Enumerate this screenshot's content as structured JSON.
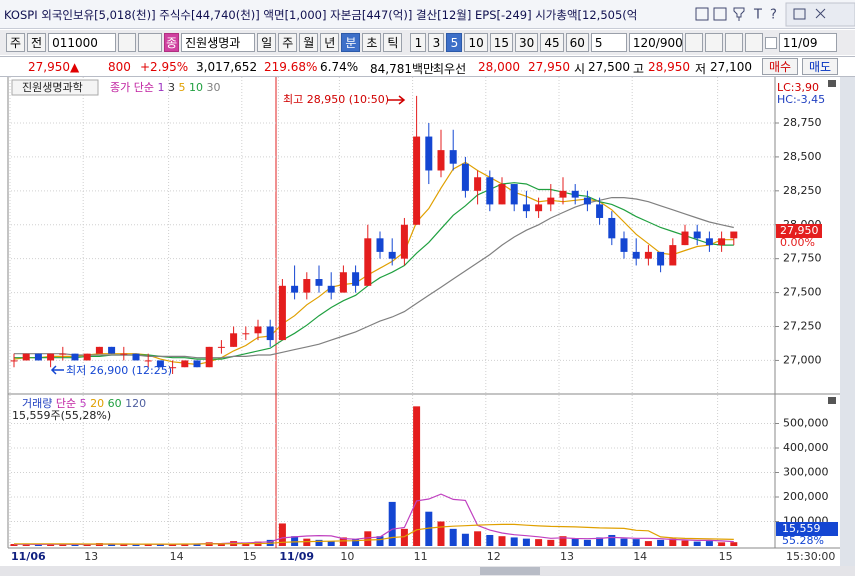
{
  "title_bar": {
    "text": "KOSPI 외국인보유[5,018(천)] 주식수[44,740(천)] 액면[1,000] 자본금[447(억)] 결산[12월] EPS[-249] 시가총액[12,505(억",
    "icons": [
      "T",
      "?"
    ]
  },
  "toolbar": {
    "market": "주",
    "mode": "전",
    "code": "011000",
    "badge": "종",
    "name": "진원생명과",
    "periods": [
      "일",
      "주",
      "월",
      "년",
      "분",
      "초",
      "틱"
    ],
    "active_period": 4,
    "intervals": [
      "1",
      "3",
      "5",
      "10",
      "15",
      "30",
      "45",
      "60"
    ],
    "active_interval": 2,
    "count": "5",
    "range": "120/900",
    "date": "11/09"
  },
  "quote": {
    "items": [
      {
        "text": "27,950▲",
        "color": "#e00000"
      },
      {
        "text": "800",
        "color": "#e00000"
      },
      {
        "text": "+2.95%",
        "color": "#e00000"
      },
      {
        "text": "3,017,652",
        "color": "#000000"
      },
      {
        "text": "219.68%",
        "color": "#e00000"
      },
      {
        "text": "6.74%",
        "color": "#000000"
      },
      {
        "text": "84,781백만",
        "color": "#000000"
      },
      {
        "text": "최우선",
        "color": "#000000"
      },
      {
        "text": "28,000",
        "color": "#e00000"
      },
      {
        "text": "27,950",
        "color": "#e00000"
      },
      {
        "text": "시",
        "color": "#000000"
      },
      {
        "text": "27,500",
        "color": "#000000"
      },
      {
        "text": "고",
        "color": "#000000"
      },
      {
        "text": "28,950",
        "color": "#e00000"
      },
      {
        "text": "저",
        "color": "#000000"
      },
      {
        "text": "27,100",
        "color": "#000000"
      }
    ],
    "buttons": [
      {
        "text": "매수",
        "color": "#d00000"
      },
      {
        "text": "매도",
        "color": "#0030c0"
      }
    ]
  },
  "chart_data": {
    "type": "candlestick",
    "grid": true,
    "categories": [
      "11/06",
      null,
      null,
      null,
      null,
      null,
      "13",
      null,
      null,
      null,
      null,
      null,
      null,
      "14",
      null,
      null,
      null,
      null,
      null,
      "15",
      null,
      null,
      "11/09",
      null,
      null,
      null,
      null,
      "10",
      null,
      null,
      null,
      null,
      null,
      "11",
      null,
      null,
      null,
      null,
      null,
      "12",
      null,
      null,
      null,
      null,
      null,
      "13",
      null,
      null,
      null,
      null,
      null,
      "14",
      null,
      null,
      null,
      null,
      null,
      null,
      "15",
      null
    ],
    "end_label": "15:30:00",
    "price": {
      "name": "진원생명과학",
      "legend_title": "종가 단순",
      "up_color": "#e41e1e",
      "down_color": "#1446d2",
      "candles": [
        [
          27000,
          27050,
          26950,
          27000
        ],
        [
          27000,
          27050,
          27000,
          27050
        ],
        [
          27050,
          27050,
          27000,
          27000
        ],
        [
          27000,
          27050,
          26950,
          27050
        ],
        [
          27050,
          27100,
          27000,
          27050
        ],
        [
          27050,
          27050,
          27000,
          27000
        ],
        [
          27000,
          27050,
          27000,
          27050
        ],
        [
          27050,
          27100,
          27050,
          27100
        ],
        [
          27100,
          27100,
          27050,
          27050
        ],
        [
          27050,
          27100,
          27000,
          27050
        ],
        [
          27050,
          27050,
          27000,
          27000
        ],
        [
          27000,
          27050,
          26950,
          27000
        ],
        [
          27000,
          27000,
          26950,
          26950
        ],
        [
          26950,
          27000,
          26900,
          26950
        ],
        [
          26950,
          27000,
          26950,
          27000
        ],
        [
          27000,
          27000,
          26950,
          26950
        ],
        [
          26950,
          27100,
          26950,
          27100
        ],
        [
          27100,
          27150,
          27050,
          27100
        ],
        [
          27100,
          27250,
          27100,
          27200
        ],
        [
          27200,
          27250,
          27150,
          27200
        ],
        [
          27200,
          27300,
          27150,
          27250
        ],
        [
          27250,
          27300,
          27100,
          27150
        ],
        [
          27150,
          27600,
          27150,
          27550
        ],
        [
          27550,
          27700,
          27450,
          27500
        ],
        [
          27500,
          27650,
          27450,
          27600
        ],
        [
          27600,
          27700,
          27500,
          27550
        ],
        [
          27550,
          27650,
          27450,
          27500
        ],
        [
          27500,
          27700,
          27500,
          27650
        ],
        [
          27650,
          27700,
          27500,
          27550
        ],
        [
          27550,
          28000,
          27550,
          27900
        ],
        [
          27900,
          27950,
          27750,
          27800
        ],
        [
          27800,
          27900,
          27700,
          27750
        ],
        [
          27750,
          28050,
          27700,
          28000
        ],
        [
          28000,
          28950,
          28000,
          28650
        ],
        [
          28650,
          28750,
          28300,
          28400
        ],
        [
          28400,
          28700,
          28350,
          28550
        ],
        [
          28550,
          28700,
          28400,
          28450
        ],
        [
          28450,
          28500,
          28200,
          28250
        ],
        [
          28250,
          28400,
          28150,
          28350
        ],
        [
          28350,
          28400,
          28100,
          28150
        ],
        [
          28150,
          28350,
          28150,
          28300
        ],
        [
          28300,
          28300,
          28100,
          28150
        ],
        [
          28150,
          28250,
          28050,
          28100
        ],
        [
          28100,
          28200,
          28050,
          28150
        ],
        [
          28150,
          28300,
          28100,
          28200
        ],
        [
          28200,
          28350,
          28150,
          28250
        ],
        [
          28250,
          28300,
          28150,
          28200
        ],
        [
          28200,
          28250,
          28100,
          28150
        ],
        [
          28150,
          28200,
          28000,
          28050
        ],
        [
          28050,
          28100,
          27850,
          27900
        ],
        [
          27900,
          27950,
          27750,
          27800
        ],
        [
          27800,
          27900,
          27700,
          27750
        ],
        [
          27750,
          27850,
          27700,
          27800
        ],
        [
          27800,
          27800,
          27650,
          27700
        ],
        [
          27700,
          27900,
          27700,
          27850
        ],
        [
          27850,
          28000,
          27850,
          27950
        ],
        [
          27950,
          28000,
          27850,
          27900
        ],
        [
          27900,
          27950,
          27800,
          27850
        ],
        [
          27850,
          27950,
          27800,
          27900
        ],
        [
          27900,
          27950,
          27850,
          27950
        ]
      ],
      "ylim": [
        26760,
        29030
      ],
      "yticks": [
        {
          "value": 27000,
          "label": "27,000"
        },
        {
          "value": 27250,
          "label": "27,250"
        },
        {
          "value": 27500,
          "label": "27,500"
        },
        {
          "value": 27750,
          "label": "27,750"
        },
        {
          "value": 28000,
          "label": "28,000"
        },
        {
          "value": 28250,
          "label": "28,250"
        },
        {
          "value": 28500,
          "label": "28,500"
        },
        {
          "value": 28750,
          "label": "28,750"
        }
      ],
      "ma": [
        {
          "name": "1",
          "color": "#9b30c0"
        },
        {
          "name": "3",
          "color": "#303030"
        },
        {
          "name": "5",
          "color": "#e0a000",
          "values": [
            27010,
            27020,
            27020,
            27030,
            27030,
            27030,
            27040,
            27050,
            27050,
            27050,
            27050,
            27040,
            27010,
            26990,
            26980,
            26970,
            26990,
            27020,
            27070,
            27110,
            27170,
            27180,
            27270,
            27330,
            27410,
            27470,
            27540,
            27560,
            27570,
            27630,
            27680,
            27730,
            27800,
            28020,
            28120,
            28270,
            28410,
            28460,
            28400,
            28350,
            28300,
            28240,
            28210,
            28170,
            28180,
            28170,
            28180,
            28190,
            28170,
            28110,
            28020,
            27930,
            27860,
            27790,
            27780,
            27810,
            27840,
            27850,
            27890,
            27890
          ]
        },
        {
          "name": "10",
          "color": "#20a040",
          "values": [
            27020,
            27020,
            27020,
            27020,
            27020,
            27020,
            27030,
            27030,
            27040,
            27040,
            27040,
            27040,
            27030,
            27020,
            27020,
            27010,
            27010,
            27010,
            27030,
            27050,
            27070,
            27090,
            27150,
            27200,
            27260,
            27330,
            27390,
            27440,
            27480,
            27550,
            27610,
            27650,
            27700,
            27790,
            27870,
            27970,
            28070,
            28140,
            28220,
            28260,
            28300,
            28310,
            28300,
            28260,
            28260,
            28240,
            28220,
            28210,
            28170,
            28150,
            28110,
            28060,
            28020,
            27980,
            27950,
            27920,
            27890,
            27860,
            27850,
            27850
          ]
        },
        {
          "name": "30",
          "color": "#808080",
          "values": [
            27050,
            27050,
            27050,
            27050,
            27050,
            27040,
            27040,
            27040,
            27040,
            27040,
            27040,
            27030,
            27030,
            27030,
            27030,
            27020,
            27020,
            27020,
            27030,
            27030,
            27040,
            27040,
            27060,
            27080,
            27100,
            27120,
            27150,
            27180,
            27210,
            27250,
            27290,
            27320,
            27360,
            27420,
            27480,
            27540,
            27600,
            27660,
            27720,
            27780,
            27850,
            27910,
            27960,
            28000,
            28050,
            28090,
            28130,
            28160,
            28180,
            28200,
            28200,
            28190,
            28170,
            28140,
            28110,
            28080,
            28050,
            28020,
            28000,
            27980
          ]
        }
      ],
      "lc": "LC:3,90",
      "hc": "HC:-3,45",
      "current_label": "27,950",
      "change_label": "0.00%",
      "high_note": "최고 28,950 (10:50)",
      "low_note": "최저 26,900 (12:25)"
    },
    "volume": {
      "name": "거래량",
      "legend_title": "단순",
      "summary": "15,559주(55,28%)",
      "values": [
        8000,
        6000,
        5000,
        9000,
        7000,
        5000,
        6000,
        12000,
        8000,
        6000,
        5000,
        7000,
        9000,
        10000,
        6000,
        8000,
        15000,
        12000,
        20000,
        10000,
        18000,
        25000,
        92000,
        40000,
        30000,
        25000,
        20000,
        35000,
        28000,
        60000,
        40000,
        180000,
        70000,
        570000,
        140000,
        100000,
        70000,
        50000,
        60000,
        45000,
        40000,
        35000,
        30000,
        28000,
        25000,
        40000,
        30000,
        25000,
        35000,
        45000,
        30000,
        28000,
        20000,
        25000,
        30000,
        22000,
        18000,
        20000,
        15000,
        15559
      ],
      "ylim": [
        0,
        600000
      ],
      "yticks": [
        {
          "value": 100000,
          "label": "100,000"
        },
        {
          "value": 200000,
          "label": "200,000"
        },
        {
          "value": 300000,
          "label": "300,000"
        },
        {
          "value": 400000,
          "label": "400,000"
        },
        {
          "value": 500000,
          "label": "500,000"
        }
      ],
      "ma": [
        {
          "name": "5",
          "color": "#c040c0",
          "values": [
            7000,
            7000,
            6500,
            7000,
            7000,
            6400,
            6600,
            7800,
            8000,
            7400,
            7400,
            7600,
            7000,
            7400,
            7400,
            8000,
            9600,
            10200,
            12200,
            12200,
            15000,
            17000,
            33000,
            37000,
            41000,
            42400,
            41400,
            30000,
            27600,
            33600,
            36600,
            68600,
            75600,
            184000,
            192000,
            212000,
            190000,
            186000,
            84000,
            65000,
            53000,
            46000,
            42000,
            37600,
            31600,
            33600,
            30600,
            29600,
            31000,
            35000,
            33000,
            31600,
            31600,
            29600,
            26600,
            25000,
            23000,
            23000,
            21000,
            18100
          ]
        },
        {
          "name": "20",
          "color": "#e0a000",
          "values": [
            9000,
            9000,
            9000,
            8800,
            8600,
            8400,
            8200,
            8200,
            8000,
            8000,
            7800,
            7800,
            7800,
            7900,
            8000,
            8000,
            8400,
            8700,
            9400,
            9600,
            10200,
            11000,
            15000,
            16600,
            17800,
            18800,
            19400,
            20800,
            21800,
            24400,
            26100,
            34800,
            37900,
            66300,
            72900,
            77500,
            80700,
            82800,
            85200,
            86900,
            88000,
            88000,
            85000,
            82000,
            80000,
            79000,
            78000,
            76000,
            74000,
            73000,
            72000,
            64000,
            62000,
            37000,
            33000,
            31000,
            30000,
            29000,
            28000,
            27000
          ]
        },
        {
          "name": "60",
          "color": "#20a040"
        },
        {
          "name": "120",
          "color": "#5060a0"
        }
      ],
      "current_label": "15,559",
      "ratio_label": "55.28%"
    }
  }
}
